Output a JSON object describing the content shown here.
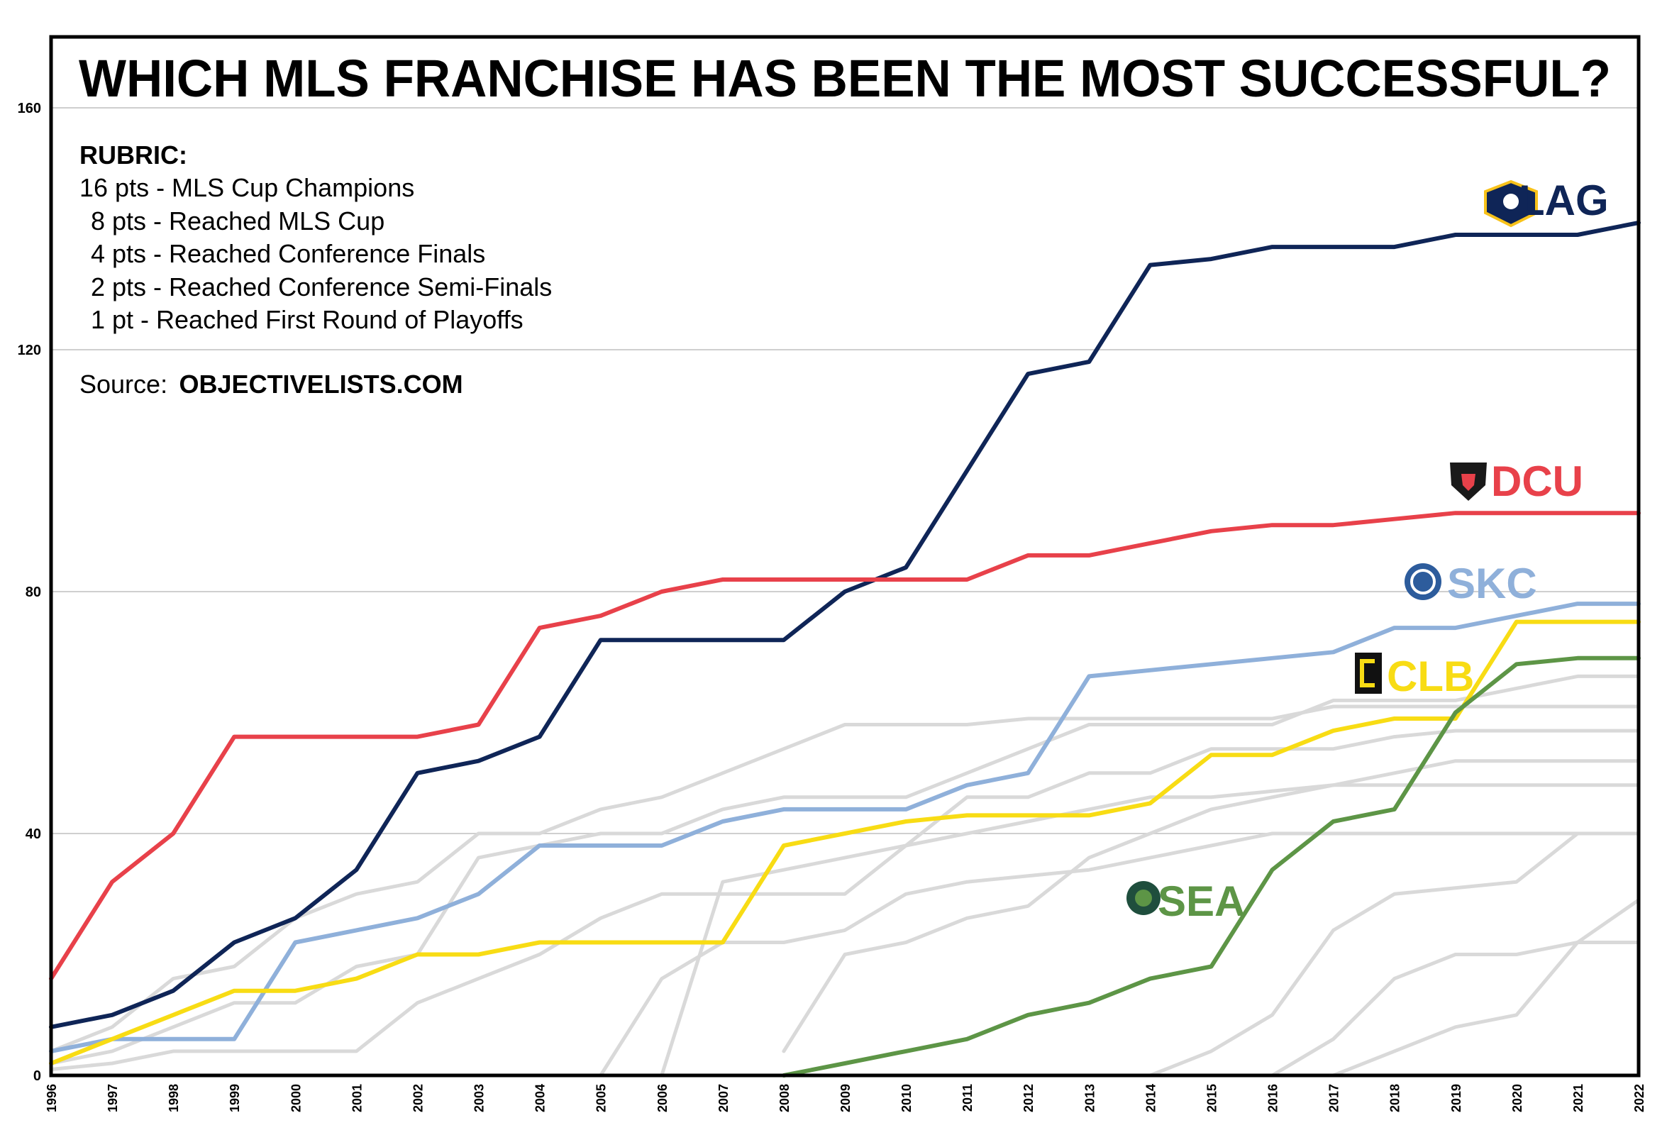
{
  "title": "WHICH MLS FRANCHISE HAS BEEN THE MOST SUCCESSFUL?",
  "rubric": {
    "heading": "RUBRIC:",
    "lines": [
      "16 pts - MLS Cup Champions",
      "8 pts - Reached MLS Cup",
      "4 pts - Reached Conference Finals",
      "2 pts - Reached Conference Semi-Finals",
      "1 pt - Reached First Round of Playoffs"
    ]
  },
  "source": {
    "label": "Source:",
    "name": "OBJECTIVELISTS.COM"
  },
  "chart_data": {
    "type": "line",
    "title": "WHICH MLS FRANCHISE HAS BEEN THE MOST SUCCESSFUL?",
    "xlabel": "",
    "ylabel": "",
    "x": [
      1996,
      1997,
      1998,
      1999,
      2000,
      2001,
      2002,
      2003,
      2004,
      2005,
      2006,
      2007,
      2008,
      2009,
      2010,
      2011,
      2012,
      2013,
      2014,
      2015,
      2016,
      2017,
      2018,
      2019,
      2020,
      2021,
      2022
    ],
    "ylim": [
      0,
      160
    ],
    "yticks": [
      0,
      40,
      80,
      120,
      160
    ],
    "grid": true,
    "series": [
      {
        "name": "LAG",
        "color": "#0f2557",
        "highlight": true,
        "values": [
          8,
          10,
          14,
          22,
          26,
          34,
          50,
          52,
          56,
          72,
          72,
          72,
          72,
          80,
          84,
          100,
          116,
          118,
          134,
          135,
          137,
          137,
          137,
          139,
          139,
          139,
          141
        ]
      },
      {
        "name": "DCU",
        "color": "#e8414a",
        "highlight": true,
        "values": [
          16,
          32,
          40,
          56,
          56,
          56,
          56,
          58,
          74,
          76,
          80,
          82,
          82,
          82,
          82,
          82,
          86,
          86,
          88,
          90,
          91,
          91,
          92,
          93,
          93,
          93,
          93
        ]
      },
      {
        "name": "SKC",
        "color": "#8fb0da",
        "highlight": true,
        "values": [
          4,
          6,
          6,
          6,
          22,
          24,
          26,
          30,
          38,
          38,
          38,
          42,
          44,
          44,
          44,
          48,
          50,
          66,
          67,
          68,
          69,
          70,
          74,
          74,
          76,
          78,
          78
        ]
      },
      {
        "name": "CLB",
        "color": "#f8dc14",
        "highlight": true,
        "values": [
          2,
          6,
          10,
          14,
          14,
          16,
          20,
          20,
          22,
          22,
          22,
          22,
          38,
          40,
          42,
          43,
          43,
          43,
          45,
          53,
          53,
          57,
          59,
          59,
          75,
          75,
          75
        ]
      },
      {
        "name": "SEA",
        "color": "#5d9546",
        "highlight": true,
        "start": 2008,
        "values": [
          null,
          null,
          null,
          null,
          null,
          null,
          null,
          null,
          null,
          null,
          null,
          null,
          0,
          2,
          4,
          6,
          10,
          12,
          16,
          18,
          34,
          42,
          44,
          60,
          68,
          69,
          69
        ]
      },
      {
        "name": "other-1",
        "color": "#d9d9d9",
        "highlight": false,
        "values": [
          4,
          8,
          16,
          18,
          26,
          30,
          32,
          40,
          40,
          44,
          46,
          50,
          54,
          58,
          58,
          58,
          59,
          59,
          59,
          59,
          59,
          61,
          61,
          61,
          61,
          61,
          61
        ]
      },
      {
        "name": "other-2",
        "color": "#d9d9d9",
        "highlight": false,
        "values": [
          2,
          4,
          8,
          12,
          12,
          18,
          20,
          36,
          38,
          40,
          40,
          44,
          46,
          46,
          46,
          50,
          54,
          58,
          58,
          58,
          58,
          62,
          62,
          62,
          64,
          66,
          66
        ]
      },
      {
        "name": "other-3",
        "color": "#d9d9d9",
        "highlight": false,
        "values": [
          1,
          2,
          4,
          4,
          4,
          4,
          12,
          16,
          20,
          26,
          30,
          30,
          30,
          30,
          38,
          46,
          46,
          50,
          50,
          54,
          54,
          54,
          56,
          57,
          57,
          57,
          57
        ]
      },
      {
        "name": "other-4",
        "color": "#d9d9d9",
        "highlight": false,
        "values": [
          null,
          null,
          null,
          null,
          null,
          null,
          null,
          null,
          null,
          0,
          0,
          32,
          34,
          36,
          38,
          40,
          42,
          44,
          46,
          46,
          47,
          48,
          48,
          48,
          48,
          48,
          48
        ]
      },
      {
        "name": "other-5",
        "color": "#d9d9d9",
        "highlight": false,
        "values": [
          null,
          null,
          null,
          null,
          null,
          null,
          null,
          null,
          null,
          0,
          16,
          22,
          22,
          24,
          30,
          32,
          33,
          34,
          36,
          38,
          40,
          40,
          40,
          40,
          40,
          40,
          40
        ]
      },
      {
        "name": "other-6",
        "color": "#d9d9d9",
        "highlight": false,
        "values": [
          null,
          null,
          null,
          null,
          null,
          null,
          null,
          null,
          null,
          null,
          null,
          null,
          4,
          20,
          22,
          26,
          28,
          36,
          40,
          44,
          46,
          48,
          50,
          52,
          52,
          52,
          52
        ]
      },
      {
        "name": "other-7",
        "color": "#d9d9d9",
        "highlight": false,
        "values": [
          null,
          null,
          null,
          null,
          null,
          null,
          null,
          null,
          null,
          null,
          null,
          null,
          null,
          null,
          null,
          null,
          null,
          null,
          0,
          4,
          10,
          24,
          30,
          31,
          32,
          40,
          40
        ]
      },
      {
        "name": "other-8",
        "color": "#d9d9d9",
        "highlight": false,
        "values": [
          null,
          null,
          null,
          null,
          null,
          null,
          null,
          null,
          null,
          null,
          null,
          null,
          null,
          null,
          null,
          null,
          null,
          null,
          null,
          null,
          0,
          6,
          16,
          20,
          20,
          22,
          22
        ]
      },
      {
        "name": "other-9",
        "color": "#d9d9d9",
        "highlight": false,
        "values": [
          null,
          null,
          null,
          null,
          null,
          null,
          null,
          null,
          null,
          null,
          null,
          null,
          null,
          null,
          null,
          null,
          null,
          null,
          null,
          null,
          null,
          0,
          4,
          8,
          10,
          22,
          29
        ]
      }
    ],
    "labels": [
      "LAG",
      "DCU",
      "SKC",
      "CLB",
      "SEA"
    ]
  }
}
